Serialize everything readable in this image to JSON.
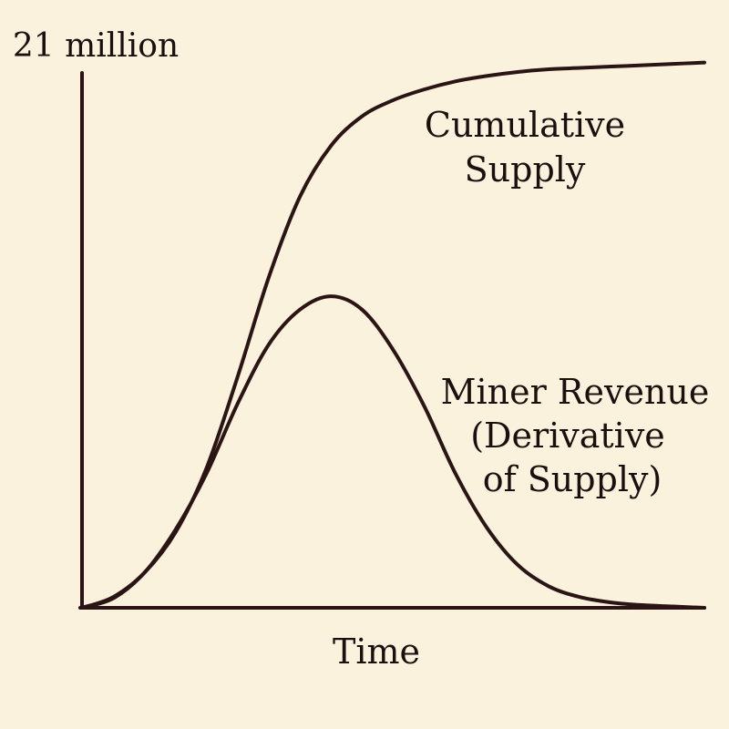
{
  "chart_data": {
    "type": "line",
    "title": "",
    "xlabel": "Time",
    "ylabel": "",
    "y_top_label": "21 million",
    "grid": false,
    "legend": "none",
    "line_color": "#2a1414",
    "background_color": "#fbf2de",
    "xlim": [
      0,
      10
    ],
    "ylim": [
      0,
      21
    ],
    "series": [
      {
        "name": "Cumulative Supply",
        "label_lines": [
          "Cumulative",
          "Supply"
        ],
        "x": [
          0,
          0.5,
          1,
          1.5,
          2,
          2.5,
          3,
          3.5,
          4,
          4.5,
          5,
          5.5,
          6,
          6.5,
          7,
          7.5,
          8,
          8.5,
          9,
          9.5,
          10
        ],
        "y": [
          0,
          0.4,
          1.3,
          2.8,
          5.2,
          8.6,
          12.3,
          15.3,
          17.2,
          18.3,
          18.9,
          19.3,
          19.6,
          19.8,
          19.95,
          20.05,
          20.1,
          20.15,
          20.2,
          20.25,
          20.3
        ]
      },
      {
        "name": "Miner Revenue (Derivative of Supply)",
        "label_lines": [
          "Miner Revenue",
          "(Derivative",
          "of Supply)"
        ],
        "x": [
          0,
          0.5,
          1,
          1.5,
          2,
          2.5,
          3,
          3.5,
          4,
          4.5,
          5,
          5.5,
          6,
          6.5,
          7,
          7.5,
          8,
          8.5,
          9,
          9.5,
          10
        ],
        "y": [
          0,
          0.35,
          1.3,
          2.9,
          5.0,
          7.6,
          9.8,
          11.1,
          11.6,
          11.1,
          9.6,
          7.5,
          5.0,
          3.0,
          1.6,
          0.8,
          0.4,
          0.2,
          0.1,
          0.05,
          0
        ]
      }
    ]
  }
}
